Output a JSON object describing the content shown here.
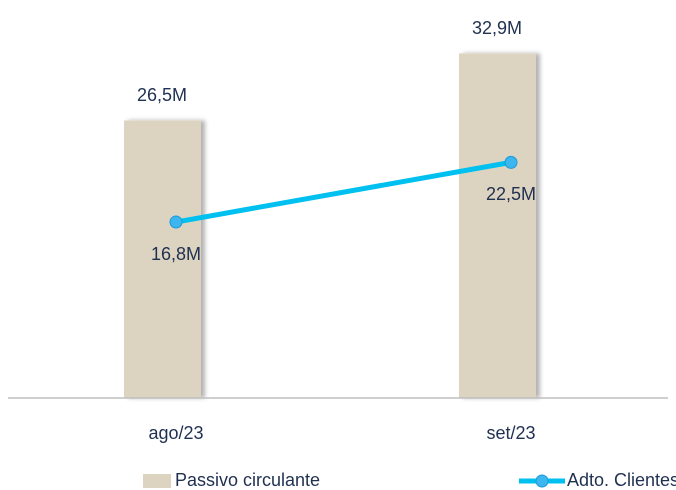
{
  "chart_data": {
    "type": "bar_line",
    "categories": [
      "ago/23",
      "set/23"
    ],
    "series": [
      {
        "name": "Passivo circulante",
        "type": "bar",
        "color": "#ddd3c1",
        "values": [
          26.5,
          32.9
        ],
        "value_labels": [
          "26,5M",
          "32,9M"
        ]
      },
      {
        "name": "Adto. Clientes",
        "type": "line",
        "color": "#00c0f0",
        "values": [
          16.8,
          22.5
        ],
        "value_labels": [
          "16,8M",
          "22,5M"
        ]
      }
    ],
    "ylim": [
      0,
      38
    ]
  }
}
